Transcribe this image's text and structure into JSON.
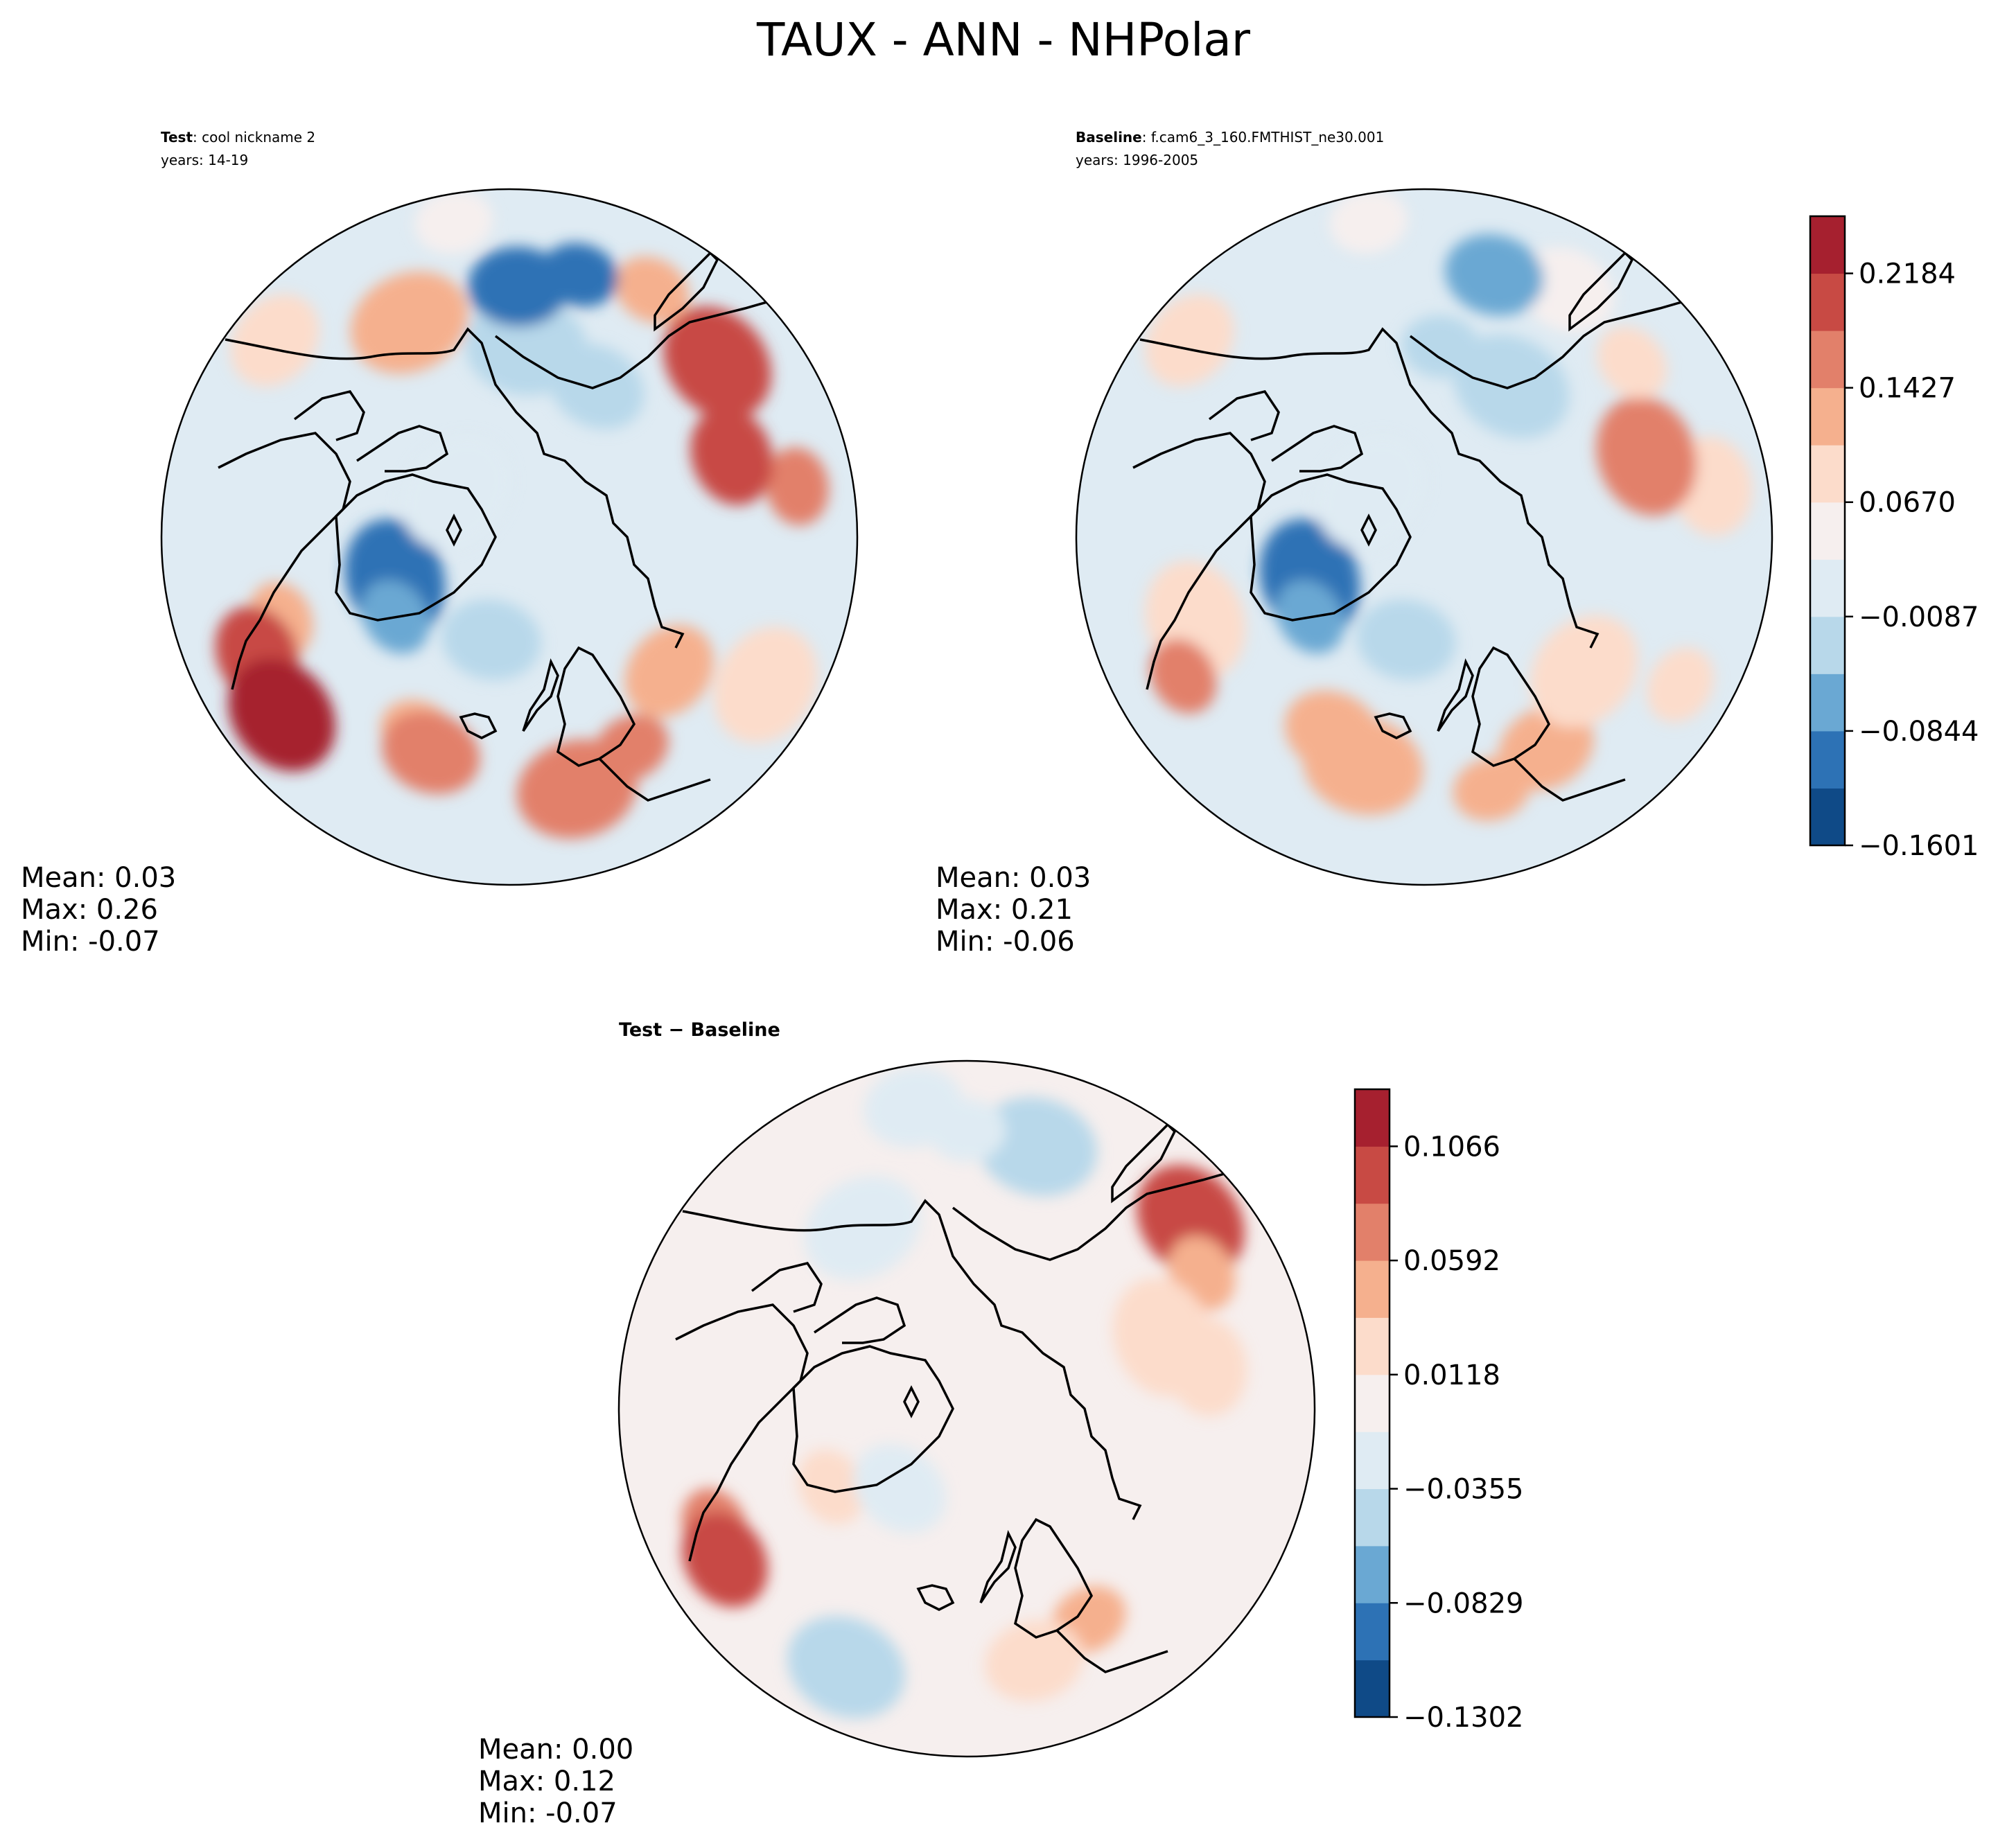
{
  "figure": {
    "title": "TAUX - ANN - NHPolar"
  },
  "chart_data": [
    {
      "type": "heatmap",
      "panel": "test",
      "projection": "north-polar-stereographic",
      "label_bold": "Test",
      "label_sep": ":",
      "label_rest": " cool nickname 2",
      "years": "years: 14-19",
      "stats": {
        "mean": "Mean:  0.03",
        "max": "Max:  0.26",
        "min": "Min: -0.07"
      },
      "stat_values": {
        "mean": 0.03,
        "max": 0.26,
        "min": -0.07
      },
      "blobs": [
        {
          "r": 0.92,
          "a": 100,
          "v": 0.05
        },
        {
          "r": 0.88,
          "a": 140,
          "v": 0.07
        },
        {
          "r": 0.68,
          "a": 115,
          "v": 0.11
        },
        {
          "r": 0.7,
          "a": 200,
          "v": 0.12
        },
        {
          "r": 0.8,
          "a": 205,
          "v": 0.2
        },
        {
          "r": 0.83,
          "a": 218,
          "v": 0.24
        },
        {
          "r": 0.62,
          "a": 245,
          "v": 0.13
        },
        {
          "r": 0.66,
          "a": 250,
          "v": 0.15
        },
        {
          "r": 0.75,
          "a": 285,
          "v": 0.17
        },
        {
          "r": 0.7,
          "a": 300,
          "v": 0.18
        },
        {
          "r": 0.6,
          "a": 320,
          "v": 0.12
        },
        {
          "r": 0.85,
          "a": 330,
          "v": 0.1
        },
        {
          "r": 0.84,
          "a": 10,
          "v": 0.16
        },
        {
          "r": 0.68,
          "a": 20,
          "v": 0.2
        },
        {
          "r": 0.78,
          "a": 40,
          "v": 0.19
        },
        {
          "r": 0.82,
          "a": 60,
          "v": 0.13
        },
        {
          "r": 0.5,
          "a": 60,
          "v": -0.04
        },
        {
          "r": 0.55,
          "a": 85,
          "v": -0.03
        },
        {
          "r": 0.78,
          "a": 75,
          "v": -0.12
        },
        {
          "r": 0.72,
          "a": 88,
          "v": -0.09
        },
        {
          "r": 0.35,
          "a": 200,
          "v": -0.11
        },
        {
          "r": 0.4,
          "a": 215,
          "v": -0.06
        },
        {
          "r": 0.3,
          "a": 260,
          "v": -0.02
        },
        {
          "r": 0.2,
          "a": 140,
          "v": 0.01
        }
      ]
    },
    {
      "type": "heatmap",
      "panel": "baseline",
      "projection": "north-polar-stereographic",
      "label_bold": "Baseline",
      "label_sep": ":",
      "label_rest": " f.cam6_3_160.FMTHIST_ne30.001",
      "years": "years: 1996-2005",
      "stats": {
        "mean": "Mean:  0.03",
        "max": "Max:  0.21",
        "min": "Min: -0.06"
      },
      "stat_values": {
        "mean": 0.03,
        "max": 0.21,
        "min": -0.06
      },
      "colorbar": {
        "ticks": [
          "0.2184",
          "0.1427",
          "0.0670",
          "−0.0087",
          "−0.0844",
          "−0.1601"
        ],
        "levels": [
          -0.1601,
          -0.1222,
          -0.0844,
          -0.0466,
          -0.0087,
          0.0291,
          0.067,
          0.1048,
          0.1427,
          0.1806,
          0.2184,
          0.2563
        ]
      },
      "blobs": [
        {
          "r": 0.92,
          "a": 100,
          "v": 0.06
        },
        {
          "r": 0.88,
          "a": 140,
          "v": 0.07
        },
        {
          "r": 0.7,
          "a": 200,
          "v": 0.1
        },
        {
          "r": 0.8,
          "a": 210,
          "v": 0.15
        },
        {
          "r": 0.62,
          "a": 245,
          "v": 0.12
        },
        {
          "r": 0.68,
          "a": 255,
          "v": 0.14
        },
        {
          "r": 0.75,
          "a": 285,
          "v": 0.13
        },
        {
          "r": 0.7,
          "a": 300,
          "v": 0.14
        },
        {
          "r": 0.6,
          "a": 320,
          "v": 0.09
        },
        {
          "r": 0.85,
          "a": 330,
          "v": 0.07
        },
        {
          "r": 0.84,
          "a": 10,
          "v": 0.09
        },
        {
          "r": 0.68,
          "a": 20,
          "v": 0.16
        },
        {
          "r": 0.78,
          "a": 40,
          "v": 0.1
        },
        {
          "r": 0.82,
          "a": 60,
          "v": 0.05
        },
        {
          "r": 0.5,
          "a": 60,
          "v": -0.03
        },
        {
          "r": 0.55,
          "a": 85,
          "v": -0.02
        },
        {
          "r": 0.78,
          "a": 75,
          "v": -0.05
        },
        {
          "r": 0.35,
          "a": 200,
          "v": -0.12
        },
        {
          "r": 0.4,
          "a": 215,
          "v": -0.06
        },
        {
          "r": 0.3,
          "a": 260,
          "v": -0.02
        },
        {
          "r": 0.2,
          "a": 140,
          "v": 0.01
        }
      ]
    },
    {
      "type": "heatmap",
      "panel": "difference",
      "projection": "north-polar-stereographic",
      "label_bold": "Test − Baseline",
      "label_sep": "",
      "label_rest": "",
      "years": "",
      "stats": {
        "mean": "Mean:  0.00",
        "max": "Max:  0.12",
        "min": "Min: -0.07"
      },
      "stat_values": {
        "mean": 0.0,
        "max": 0.12,
        "min": -0.07
      },
      "colorbar": {
        "ticks": [
          "0.1066",
          "0.0592",
          "0.0118",
          "−0.0355",
          "−0.0829",
          "−0.1302"
        ],
        "levels": [
          -0.1302,
          -0.1066,
          -0.0829,
          -0.0592,
          -0.0355,
          -0.0118,
          0.0118,
          0.0355,
          0.0592,
          0.0829,
          0.1066,
          0.1302
        ]
      },
      "blobs": [
        {
          "r": 0.8,
          "a": 205,
          "v": 0.06
        },
        {
          "r": 0.82,
          "a": 212,
          "v": 0.09
        },
        {
          "r": 0.84,
          "a": 40,
          "v": 0.1
        },
        {
          "r": 0.78,
          "a": 30,
          "v": 0.04
        },
        {
          "r": 0.7,
          "a": 10,
          "v": 0.03
        },
        {
          "r": 0.6,
          "a": 20,
          "v": 0.03
        },
        {
          "r": 0.7,
          "a": 300,
          "v": 0.04
        },
        {
          "r": 0.75,
          "a": 285,
          "v": 0.03
        },
        {
          "r": 0.78,
          "a": 75,
          "v": -0.05
        },
        {
          "r": 0.8,
          "a": 90,
          "v": -0.03
        },
        {
          "r": 0.88,
          "a": 100,
          "v": -0.02
        },
        {
          "r": 0.82,
          "a": 245,
          "v": -0.04
        },
        {
          "r": 0.45,
          "a": 210,
          "v": 0.02
        },
        {
          "r": 0.3,
          "a": 230,
          "v": -0.02
        },
        {
          "r": 0.6,
          "a": 120,
          "v": -0.02
        }
      ]
    }
  ]
}
